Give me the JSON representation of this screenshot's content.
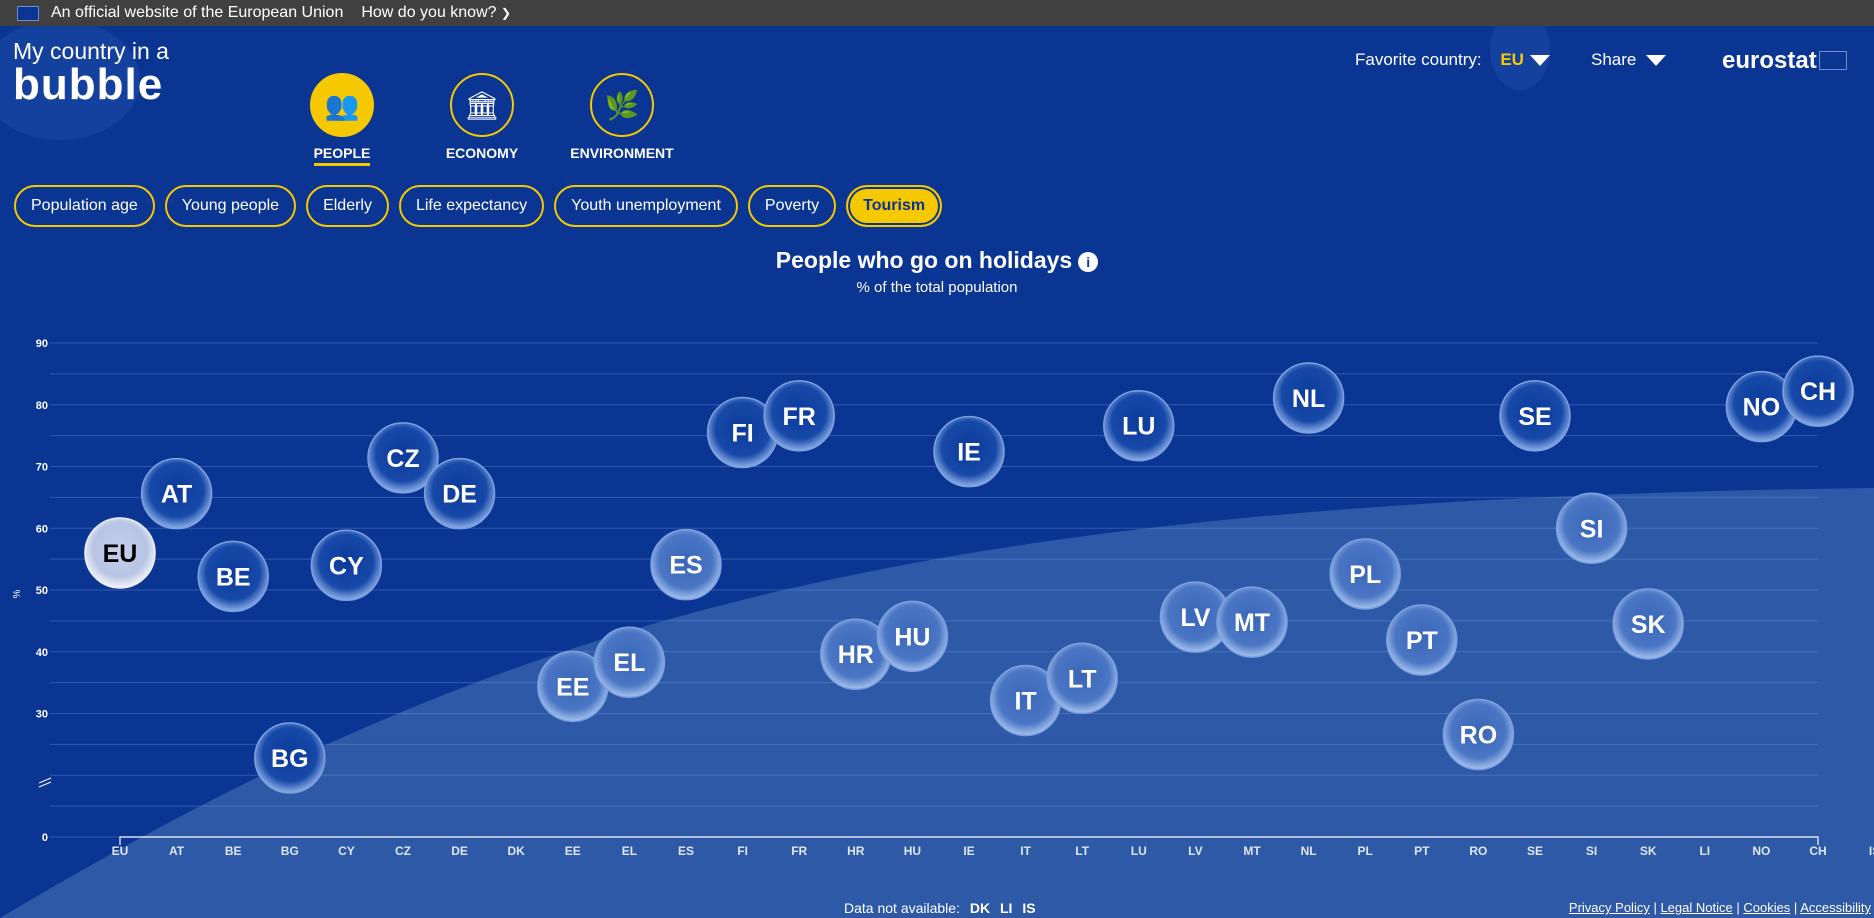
{
  "topbar": {
    "official": "An official website of the European Union",
    "how": "How do you know?"
  },
  "logo": {
    "line1": "My country in a",
    "line2": "bubble"
  },
  "categories": [
    {
      "label": "PEOPLE",
      "icon": "people-icon",
      "active": true
    },
    {
      "label": "ECONOMY",
      "icon": "bank-icon"
    },
    {
      "label": "ENVIRONMENT",
      "icon": "leaf-icon"
    }
  ],
  "header": {
    "favorite_label": "Favorite country:",
    "favorite_value": "EU",
    "share": "Share",
    "brand": "eurostat"
  },
  "topics": [
    "Population age",
    "Young people",
    "Elderly",
    "Life expectancy",
    "Youth unemployment",
    "Poverty",
    "Tourism"
  ],
  "active_topic": "Tourism",
  "colors": {
    "background": "#0b3592",
    "accent": "#f6c800",
    "bubble": "#1a4aa6",
    "eu_bubble": "#c8d2ec"
  },
  "chart_data": {
    "type": "scatter",
    "title": "People who go on holidays",
    "subtitle": "% of the total population",
    "ylabel": "%",
    "yticks": [
      0,
      30,
      40,
      50,
      60,
      70,
      80,
      90
    ],
    "ylim": [
      0,
      90
    ],
    "axis_break": true,
    "grid": true,
    "categories": [
      "EU",
      "AT",
      "BE",
      "BG",
      "CY",
      "CZ",
      "DE",
      "DK",
      "EE",
      "EL",
      "ES",
      "FI",
      "FR",
      "HR",
      "HU",
      "IE",
      "IT",
      "LT",
      "LU",
      "LV",
      "MT",
      "NL",
      "PL",
      "PT",
      "RO",
      "SE",
      "SI",
      "SK",
      "LI",
      "NO",
      "CH",
      "IS"
    ],
    "values": [
      56,
      65.6,
      52.2,
      22.8,
      54,
      71.4,
      65.6,
      null,
      34.4,
      38.3,
      54.1,
      75.5,
      78.2,
      39.6,
      42.5,
      72.4,
      32.1,
      35.7,
      76.6,
      45.6,
      44.8,
      81.1,
      52.6,
      41.9,
      26.6,
      78.2,
      60,
      44.5,
      null,
      79.7,
      82.2,
      null
    ]
  },
  "footer": {
    "na_label": "Data not available:",
    "na": [
      "DK",
      "LI",
      "IS"
    ],
    "links": [
      "Privacy Policy",
      "Legal Notice",
      "Cookies",
      "Accessibility"
    ]
  }
}
